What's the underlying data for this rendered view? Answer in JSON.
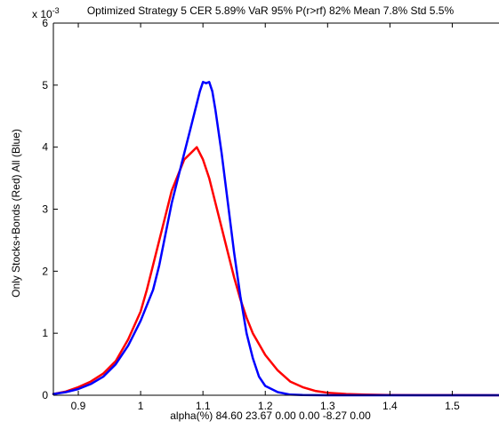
{
  "chart_data": {
    "type": "line",
    "title": "Optimized Strategy 5 CER 5.89%  VaR 95%  P(r>rf) 82%  Mean 7.8%  Std 5.5%",
    "xlabel": "alpha(%) 84.60  23.67   0.00   0.00  -8.27   0.00",
    "ylabel": "Only Stocks+Bonds (Red) All (Blue)",
    "y_exponent_label": "x 10",
    "y_exponent_value": "-3",
    "xlim": [
      0.86,
      1.575
    ],
    "ylim": [
      0,
      0.006
    ],
    "xticks": [
      0.9,
      1.0,
      1.1,
      1.2,
      1.3,
      1.4,
      1.5
    ],
    "xtick_labels": [
      "0.9",
      "1",
      "1.1",
      "1.2",
      "1.3",
      "1.4",
      "1.5"
    ],
    "yticks": [
      0,
      0.001,
      0.002,
      0.003,
      0.004,
      0.005,
      0.006
    ],
    "ytick_labels": [
      "0",
      "1",
      "2",
      "3",
      "4",
      "5",
      "6"
    ],
    "grid": false,
    "legend": "none",
    "series": [
      {
        "color": "#ff0000",
        "x": [
          0.86,
          0.88,
          0.9,
          0.92,
          0.94,
          0.96,
          0.98,
          1.0,
          1.01,
          1.02,
          1.03,
          1.04,
          1.05,
          1.06,
          1.07,
          1.08,
          1.09,
          1.1,
          1.11,
          1.12,
          1.13,
          1.14,
          1.15,
          1.16,
          1.17,
          1.18,
          1.2,
          1.22,
          1.24,
          1.26,
          1.28,
          1.3,
          1.33,
          1.36,
          1.4,
          1.45,
          1.5,
          1.575
        ],
        "y": [
          2e-05,
          6e-05,
          0.00013,
          0.00022,
          0.00035,
          0.00055,
          0.0009,
          0.00135,
          0.0017,
          0.0021,
          0.0025,
          0.0029,
          0.0033,
          0.00355,
          0.0038,
          0.0039,
          0.004,
          0.0038,
          0.0035,
          0.0031,
          0.0027,
          0.0023,
          0.0019,
          0.00155,
          0.00125,
          0.001,
          0.00065,
          0.0004,
          0.00022,
          0.00013,
          7e-05,
          4e-05,
          2e-05,
          1e-05,
          5e-06,
          2e-06,
          1e-06,
          0.0
        ]
      },
      {
        "color": "#0000ff",
        "x": [
          0.86,
          0.88,
          0.9,
          0.92,
          0.94,
          0.96,
          0.98,
          1.0,
          1.02,
          1.03,
          1.04,
          1.05,
          1.06,
          1.07,
          1.08,
          1.09,
          1.095,
          1.1,
          1.105,
          1.11,
          1.115,
          1.12,
          1.13,
          1.14,
          1.15,
          1.16,
          1.17,
          1.18,
          1.19,
          1.2,
          1.22,
          1.24,
          1.26,
          1.3,
          1.575
        ],
        "y": [
          2e-05,
          5e-05,
          0.0001,
          0.00018,
          0.0003,
          0.0005,
          0.0008,
          0.0012,
          0.0017,
          0.0021,
          0.0026,
          0.0031,
          0.0035,
          0.0039,
          0.0043,
          0.0047,
          0.0049,
          0.00505,
          0.00503,
          0.00505,
          0.0049,
          0.0046,
          0.0039,
          0.0031,
          0.0023,
          0.0016,
          0.001,
          0.0006,
          0.0003,
          0.00015,
          5e-05,
          1e-05,
          3e-06,
          0.0,
          0.0
        ]
      }
    ]
  }
}
